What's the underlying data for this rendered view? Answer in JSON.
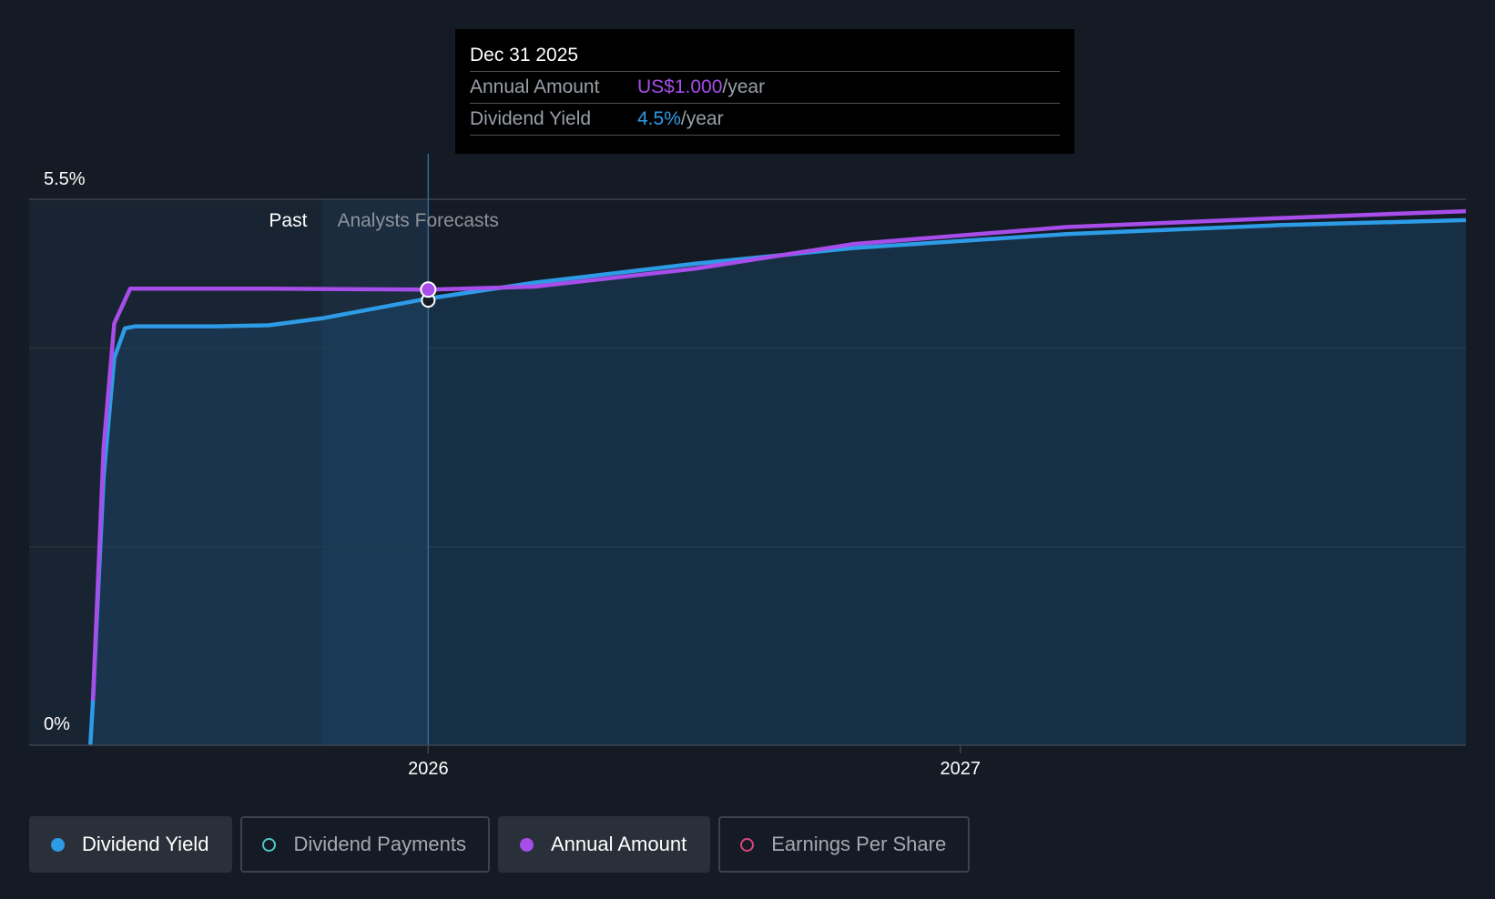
{
  "tooltip": {
    "date": "Dec 31 2025",
    "rows": [
      {
        "label": "Annual Amount",
        "value": "US$1.000",
        "unit": "/year",
        "color": "#a64dea"
      },
      {
        "label": "Dividend Yield",
        "value": "4.5%",
        "unit": "/year",
        "color": "#2d9be6"
      }
    ]
  },
  "legend": [
    {
      "label": "Dividend Yield",
      "active": true,
      "filled": true,
      "color": "#2d9be6"
    },
    {
      "label": "Dividend Payments",
      "active": false,
      "filled": false,
      "color": "#4fc8c3"
    },
    {
      "label": "Annual Amount",
      "active": true,
      "filled": true,
      "color": "#a64dea"
    },
    {
      "label": "Earnings Per Share",
      "active": false,
      "filled": false,
      "color": "#d9457e"
    }
  ],
  "chart_data": {
    "type": "area",
    "y_axis_labels": [
      "5.5%",
      "0%"
    ],
    "ylim": [
      0,
      5.5
    ],
    "xlim": [
      2025.25,
      2027.95
    ],
    "x_ticks": [
      {
        "label": "2026",
        "value": 2026.0
      },
      {
        "label": "2027",
        "value": 2027.0
      }
    ],
    "regions": {
      "past_label": "Past",
      "forecast_label": "Analysts Forecasts",
      "past_shade_start": 2025.8,
      "cursor": 2026.0
    },
    "colors": {
      "yield": "#2d9be6",
      "annual": "#a64dea",
      "background": "#151b24"
    },
    "series": [
      {
        "name": "Dividend Yield",
        "points": [
          [
            2025.365,
            0.0
          ],
          [
            2025.37,
            0.45
          ],
          [
            2025.39,
            2.7
          ],
          [
            2025.41,
            3.9
          ],
          [
            2025.43,
            4.2
          ],
          [
            2025.45,
            4.22
          ],
          [
            2025.6,
            4.22
          ],
          [
            2025.7,
            4.23
          ],
          [
            2025.8,
            4.3
          ],
          [
            2026.0,
            4.5
          ],
          [
            2026.2,
            4.66
          ],
          [
            2026.5,
            4.85
          ],
          [
            2026.8,
            5.01
          ],
          [
            2027.2,
            5.15
          ],
          [
            2027.6,
            5.24
          ],
          [
            2027.95,
            5.29
          ]
        ]
      },
      {
        "name": "Annual Amount",
        "points": [
          [
            2025.37,
            0.45
          ],
          [
            2025.39,
            3.0
          ],
          [
            2025.41,
            4.25
          ],
          [
            2025.44,
            4.6
          ],
          [
            2025.47,
            4.6
          ],
          [
            2025.7,
            4.6
          ],
          [
            2026.0,
            4.59
          ],
          [
            2026.2,
            4.62
          ],
          [
            2026.5,
            4.8
          ],
          [
            2026.8,
            5.05
          ],
          [
            2027.2,
            5.22
          ],
          [
            2027.6,
            5.31
          ],
          [
            2027.95,
            5.38
          ]
        ]
      }
    ],
    "highlight": {
      "x": 2026.0,
      "annual_amount": 1.0,
      "annual_y": 4.59,
      "dividend_yield": 4.5
    }
  }
}
